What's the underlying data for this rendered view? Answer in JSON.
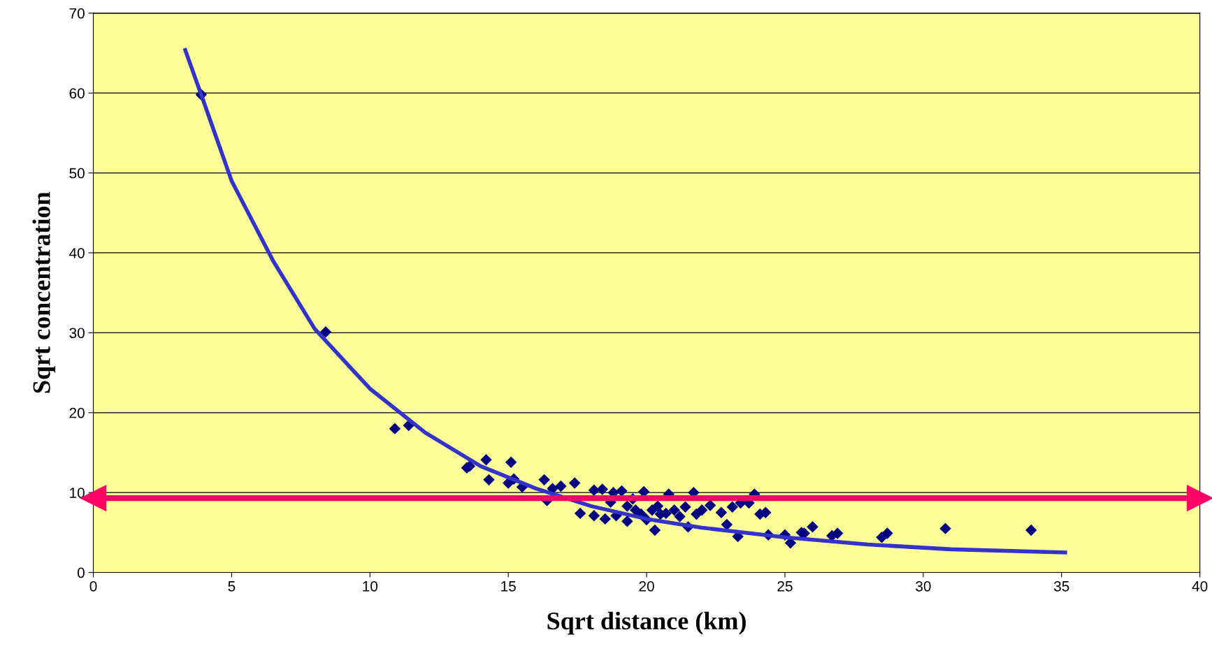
{
  "chart_data": {
    "type": "scatter",
    "xlabel": "Sqrt distance (km)",
    "ylabel": "Sqrt concentration",
    "xlim": [
      0,
      40
    ],
    "xticks": [
      0,
      5,
      10,
      15,
      20,
      25,
      30,
      35,
      40
    ],
    "ylim": [
      0,
      70
    ],
    "yticks": [
      0,
      10,
      20,
      30,
      40,
      50,
      60,
      70
    ],
    "grid": "y",
    "marker": "diamond",
    "legend": false,
    "series": [
      {
        "color": "#000080",
        "x": [
          3.9,
          8.4,
          10.9,
          11.4,
          13.5,
          13.6,
          14.2,
          14.3,
          15.1,
          15.0,
          15.2,
          15.5,
          16.3,
          16.4,
          16.6,
          16.9,
          17.4,
          17.6,
          18.1,
          18.1,
          18.4,
          18.5,
          18.7,
          18.8,
          18.9,
          19.1,
          19.3,
          19.3,
          19.5,
          19.6,
          19.8,
          19.9,
          20.0,
          20.2,
          20.3,
          20.4,
          20.5,
          20.7,
          20.8,
          21.0,
          21.2,
          21.4,
          21.5,
          21.7,
          21.8,
          22.0,
          22.3,
          22.7,
          22.9,
          23.1,
          23.3,
          23.4,
          23.7,
          23.9,
          24.1,
          24.3,
          24.4,
          25.0,
          25.2,
          25.6,
          25.7,
          26.0,
          26.7,
          26.9,
          28.5,
          28.7,
          30.8,
          33.9
        ],
        "values": [
          59.8,
          30.1,
          18.0,
          18.4,
          13.1,
          13.3,
          14.1,
          11.6,
          13.8,
          11.2,
          11.7,
          10.7,
          11.6,
          9.0,
          10.5,
          10.8,
          11.2,
          7.4,
          10.3,
          7.1,
          10.4,
          6.7,
          8.8,
          10.0,
          7.1,
          10.2,
          8.3,
          6.4,
          9.2,
          7.8,
          7.3,
          10.1,
          6.6,
          7.8,
          5.3,
          8.3,
          7.3,
          7.4,
          9.8,
          7.8,
          7.0,
          8.2,
          5.7,
          10.0,
          7.3,
          7.8,
          8.4,
          7.5,
          6.0,
          8.2,
          4.5,
          8.7,
          8.7,
          9.8,
          7.3,
          7.5,
          4.7,
          4.7,
          3.7,
          5.0,
          4.9,
          5.7,
          4.6,
          4.9,
          4.4,
          4.9,
          5.5,
          5.3
        ]
      },
      {
        "type": "line",
        "color": "#3333cc",
        "marker": "none",
        "line_style": "solid",
        "x": [
          3.3,
          3.9,
          5,
          6.5,
          8,
          10,
          12,
          14,
          16,
          18,
          20,
          22,
          25,
          28,
          31,
          35.2
        ],
        "values": [
          65.6,
          59.8,
          49,
          39,
          30.5,
          23,
          17.5,
          13.3,
          10.5,
          8.3,
          6.7,
          5.6,
          4.4,
          3.5,
          2.9,
          2.5
        ]
      }
    ],
    "ref_lines": [
      {
        "axis": "y",
        "value": 9.3,
        "color": "#ff0066"
      }
    ]
  }
}
